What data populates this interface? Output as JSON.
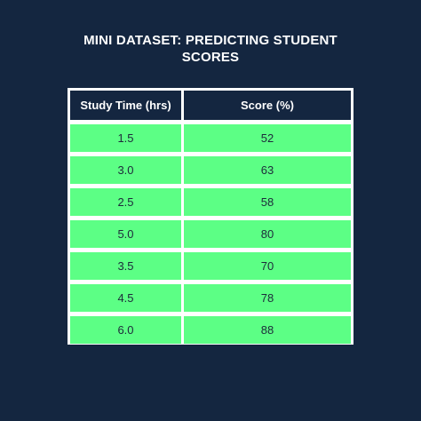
{
  "title_lines": [
    "MINI DATASET: PREDICTING STUDENT",
    "SCORES"
  ],
  "colors": {
    "background": "#142640",
    "header_bg": "#142640",
    "cell_bg": "#5cff85",
    "border": "#ffffff"
  },
  "chart_data": {
    "type": "table",
    "title": "MINI DATASET: PREDICTING STUDENT SCORES",
    "columns": [
      "Study Time (hrs)",
      "Score (%)"
    ],
    "rows": [
      [
        "1.5",
        "52"
      ],
      [
        "3.0",
        "63"
      ],
      [
        "2.5",
        "58"
      ],
      [
        "5.0",
        "80"
      ],
      [
        "3.5",
        "70"
      ],
      [
        "4.5",
        "78"
      ],
      [
        "6.0",
        "88"
      ]
    ]
  }
}
